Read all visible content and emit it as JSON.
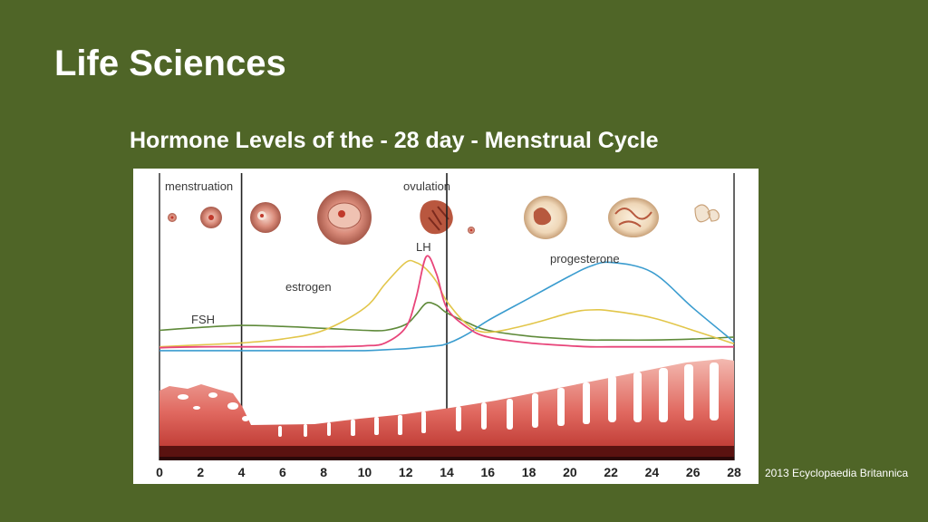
{
  "slide": {
    "title": "Life Sciences",
    "subtitle": "Hormone Levels of the - 28 day - Menstrual Cycle",
    "credit": "2013 Ecyclopaedia Britannica"
  },
  "diagram": {
    "phase_labels": {
      "menstruation": "menstruation",
      "ovulation": "ovulation"
    },
    "hormone_labels": {
      "lh": "LH",
      "progesterone": "progesterone",
      "estrogen": "estrogen",
      "fsh": "FSH"
    },
    "hormone_colors": {
      "lh": "#e8457a",
      "estrogen": "#e2c64a",
      "fsh": "#5f8a3a",
      "progesterone": "#3a9ccf"
    },
    "day_ticks": [
      "0",
      "2",
      "4",
      "6",
      "8",
      "10",
      "12",
      "14",
      "16",
      "18",
      "20",
      "22",
      "24",
      "26",
      "28"
    ],
    "markers": {
      "menstruation_end_day": 4,
      "ovulation_day": 14
    },
    "hormone_curves": {
      "days": [
        0,
        2,
        4,
        6,
        8,
        10,
        11,
        12,
        12.5,
        13,
        13.5,
        14,
        15,
        16,
        18,
        20,
        21,
        22,
        24,
        26,
        28
      ],
      "fsh": [
        0.22,
        0.25,
        0.27,
        0.26,
        0.24,
        0.22,
        0.22,
        0.28,
        0.38,
        0.5,
        0.48,
        0.4,
        0.3,
        0.22,
        0.16,
        0.13,
        0.12,
        0.12,
        0.12,
        0.13,
        0.15
      ],
      "lh": [
        0.04,
        0.05,
        0.05,
        0.05,
        0.05,
        0.06,
        0.09,
        0.25,
        0.55,
        0.98,
        0.8,
        0.45,
        0.25,
        0.15,
        0.09,
        0.06,
        0.05,
        0.05,
        0.05,
        0.05,
        0.05
      ],
      "estrogen": [
        0.05,
        0.07,
        0.09,
        0.13,
        0.22,
        0.45,
        0.7,
        0.92,
        0.92,
        0.85,
        0.72,
        0.52,
        0.28,
        0.2,
        0.28,
        0.4,
        0.43,
        0.42,
        0.35,
        0.22,
        0.08
      ],
      "progesterone": [
        0.01,
        0.01,
        0.01,
        0.01,
        0.01,
        0.01,
        0.02,
        0.03,
        0.04,
        0.05,
        0.06,
        0.08,
        0.18,
        0.32,
        0.55,
        0.78,
        0.88,
        0.92,
        0.82,
        0.45,
        0.1
      ]
    }
  }
}
